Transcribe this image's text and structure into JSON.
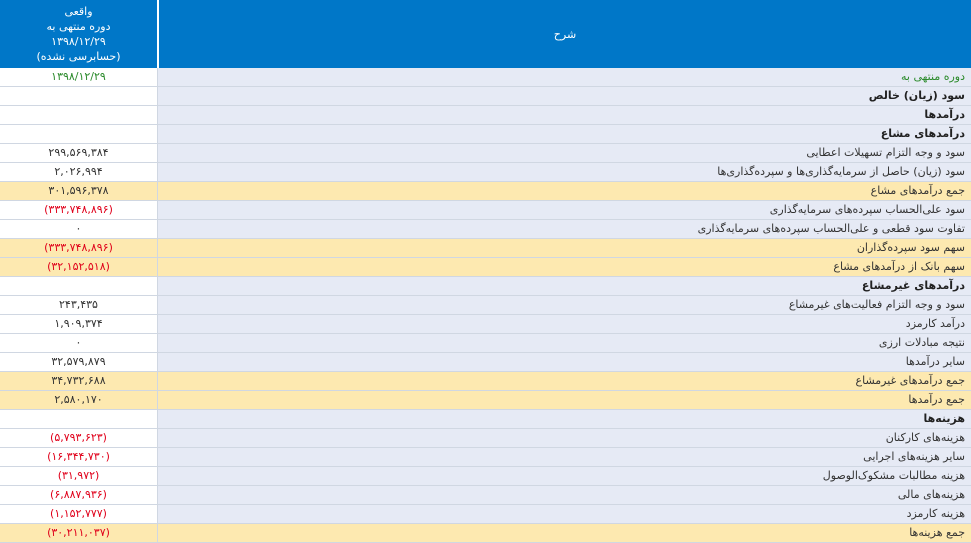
{
  "header": {
    "value_col": [
      "واقعی",
      "دوره منتهی به",
      "۱۳۹۸/۱۲/۲۹",
      "(حسابرسی نشده)"
    ],
    "desc_col": "شرح"
  },
  "rows": [
    {
      "label": "دوره منتهی به",
      "value": "۱۳۹۸/۱۲/۲۹",
      "style": "green"
    },
    {
      "label": "سود (زیان) خالص",
      "value": "",
      "style": "bold"
    },
    {
      "label": "درآمدها",
      "value": "",
      "style": "bold"
    },
    {
      "label": "درآمدهای مشاع",
      "value": "",
      "style": "bold"
    },
    {
      "label": "سود و وجه التزام تسهیلات اعطایی",
      "value": "۲۹۹,۵۶۹,۳۸۴",
      "style": ""
    },
    {
      "label": "سود (زیان) حاصل از سرمایه‌گذاری‌ها و سپرده‌گذاری‌ها",
      "value": "۲,۰۲۶,۹۹۴",
      "style": ""
    },
    {
      "label": "جمع درآمدهای مشاع",
      "value": "۳۰۱,۵۹۶,۳۷۸",
      "style": "total"
    },
    {
      "label": "سود علی‌الحساب سپرده‌های سرمایه‌گذاری",
      "value": "(۳۳۳,۷۴۸,۸۹۶)",
      "style": "neg"
    },
    {
      "label": "تفاوت سود قطعی و علی‌الحساب سپرده‌های سرمایه‌گذاری",
      "value": "۰",
      "style": ""
    },
    {
      "label": "سهم سود سپرده‌گذاران",
      "value": "(۳۳۳,۷۴۸,۸۹۶)",
      "style": "total neg"
    },
    {
      "label": "سهم بانک از درآمدهای مشاع",
      "value": "(۳۲,۱۵۲,۵۱۸)",
      "style": "total neg"
    },
    {
      "label": "درآمدهای غیرمشاع",
      "value": "",
      "style": "bold"
    },
    {
      "label": "سود و وجه التزام فعالیت‌های غیرمشاع",
      "value": "۲۴۳,۴۳۵",
      "style": ""
    },
    {
      "label": "درآمد کارمزد",
      "value": "۱,۹۰۹,۳۷۴",
      "style": ""
    },
    {
      "label": "نتیجه مبادلات ارزی",
      "value": "۰",
      "style": ""
    },
    {
      "label": "سایر درآمدها",
      "value": "۳۲,۵۷۹,۸۷۹",
      "style": ""
    },
    {
      "label": "جمع درآمدهای غیرمشاع",
      "value": "۳۴,۷۳۲,۶۸۸",
      "style": "total"
    },
    {
      "label": "جمع درآمدها",
      "value": "۲,۵۸۰,۱۷۰",
      "style": "total"
    },
    {
      "label": "هزینه‌ها",
      "value": "",
      "style": "bold"
    },
    {
      "label": "هزینه‌های کارکنان",
      "value": "(۵,۷۹۳,۶۲۳)",
      "style": "neg"
    },
    {
      "label": "سایر هزینه‌های اجرایی",
      "value": "(۱۶,۳۴۴,۷۳۰)",
      "style": "neg"
    },
    {
      "label": "هزینه مطالبات مشکوک‌الوصول",
      "value": "(۳۱,۹۷۲)",
      "style": "neg"
    },
    {
      "label": "هزینه‌های مالی",
      "value": "(۶,۸۸۷,۹۳۶)",
      "style": "neg"
    },
    {
      "label": "هزینه کارمزد",
      "value": "(۱,۱۵۲,۷۷۷)",
      "style": "neg"
    },
    {
      "label": "جمع هزینه‌ها",
      "value": "(۳۰,۲۱۱,۰۳۷)",
      "style": "total neg"
    }
  ]
}
